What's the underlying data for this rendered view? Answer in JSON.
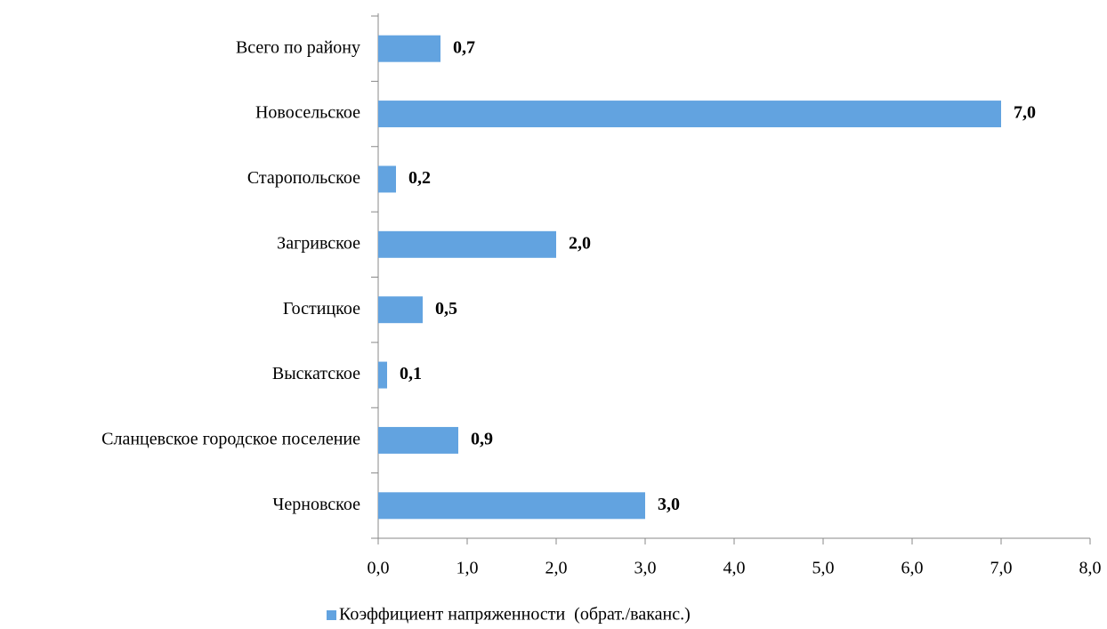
{
  "chart_data": {
    "type": "hbar",
    "categories": [
      "Всего по району",
      "Новосельское",
      "Старопольское",
      "Загривское",
      "Гостицкое",
      "Выскатское",
      "Сланцевское городское поселение",
      "Черновское"
    ],
    "series": [
      {
        "name": "Коэффициент напряженности  (обрат./ваканс.)",
        "color": "#62a3e0",
        "values": [
          0.7,
          7.0,
          0.2,
          2.0,
          0.5,
          0.1,
          0.9,
          3.0
        ],
        "value_labels": [
          "0,7",
          "7,0",
          "0,2",
          "2,0",
          "0,5",
          "0,1",
          "0,9",
          "3,0"
        ]
      }
    ],
    "xlim": [
      0,
      8
    ],
    "xticks": [
      {
        "value": 0,
        "label": "0,0"
      },
      {
        "value": 1,
        "label": "1,0"
      },
      {
        "value": 2,
        "label": "2,0"
      },
      {
        "value": 3,
        "label": "3,0"
      },
      {
        "value": 4,
        "label": "4,0"
      },
      {
        "value": 5,
        "label": "5,0"
      },
      {
        "value": 6,
        "label": "6,0"
      },
      {
        "value": 7,
        "label": "7,0"
      },
      {
        "value": 8,
        "label": "8,0"
      }
    ],
    "legend": "bottom"
  }
}
